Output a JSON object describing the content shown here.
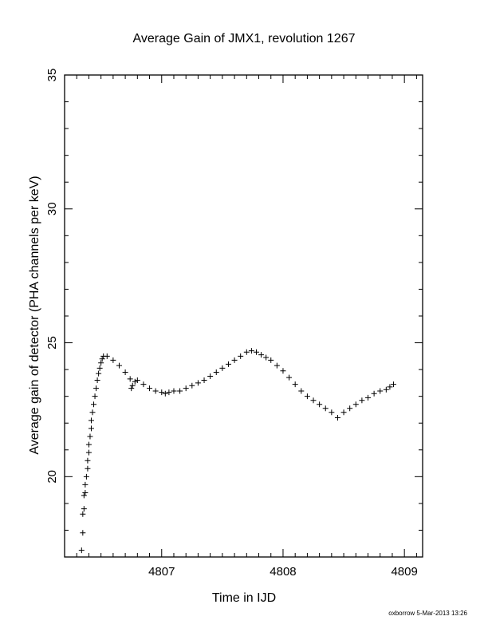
{
  "chart_data": {
    "type": "scatter",
    "title": "Average Gain of JMX1, revolution 1267",
    "xlabel": "Time in IJD",
    "ylabel": "Average gain of detector (PHA channels per keV)",
    "xlim": [
      4806.2,
      4809.15
    ],
    "ylim": [
      17.0,
      35.0
    ],
    "x_ticks": [
      4807,
      4808,
      4809
    ],
    "y_ticks": [
      20,
      25,
      30,
      35
    ],
    "grid": false,
    "marker": "+",
    "series": [
      {
        "values": [
          [
            4806.34,
            17.25
          ],
          [
            4806.35,
            17.9
          ],
          [
            4806.35,
            18.6
          ],
          [
            4806.36,
            18.8
          ],
          [
            4806.36,
            19.3
          ],
          [
            4806.37,
            19.4
          ],
          [
            4806.37,
            19.7
          ],
          [
            4806.38,
            20.0
          ],
          [
            4806.39,
            20.3
          ],
          [
            4806.39,
            20.6
          ],
          [
            4806.4,
            20.9
          ],
          [
            4806.4,
            21.2
          ],
          [
            4806.41,
            21.5
          ],
          [
            4806.42,
            21.8
          ],
          [
            4806.42,
            22.1
          ],
          [
            4806.43,
            22.4
          ],
          [
            4806.44,
            22.7
          ],
          [
            4806.45,
            23.0
          ],
          [
            4806.46,
            23.3
          ],
          [
            4806.47,
            23.6
          ],
          [
            4806.48,
            23.85
          ],
          [
            4806.49,
            24.05
          ],
          [
            4806.5,
            24.25
          ],
          [
            4806.51,
            24.4
          ],
          [
            4806.52,
            24.5
          ],
          [
            4806.55,
            24.5
          ],
          [
            4806.6,
            24.35
          ],
          [
            4806.65,
            24.15
          ],
          [
            4806.7,
            23.9
          ],
          [
            4806.74,
            23.65
          ],
          [
            4806.75,
            23.3
          ],
          [
            4806.76,
            23.4
          ],
          [
            4806.78,
            23.55
          ],
          [
            4806.8,
            23.6
          ],
          [
            4806.85,
            23.45
          ],
          [
            4806.9,
            23.3
          ],
          [
            4806.95,
            23.2
          ],
          [
            4807.0,
            23.15
          ],
          [
            4807.03,
            23.1
          ],
          [
            4807.06,
            23.15
          ],
          [
            4807.1,
            23.2
          ],
          [
            4807.15,
            23.2
          ],
          [
            4807.2,
            23.3
          ],
          [
            4807.25,
            23.4
          ],
          [
            4807.3,
            23.5
          ],
          [
            4807.35,
            23.6
          ],
          [
            4807.4,
            23.75
          ],
          [
            4807.45,
            23.9
          ],
          [
            4807.5,
            24.05
          ],
          [
            4807.55,
            24.2
          ],
          [
            4807.6,
            24.35
          ],
          [
            4807.65,
            24.5
          ],
          [
            4807.7,
            24.65
          ],
          [
            4807.74,
            24.7
          ],
          [
            4807.78,
            24.65
          ],
          [
            4807.82,
            24.55
          ],
          [
            4807.86,
            24.45
          ],
          [
            4807.9,
            24.35
          ],
          [
            4807.95,
            24.15
          ],
          [
            4808.0,
            23.95
          ],
          [
            4808.05,
            23.7
          ],
          [
            4808.1,
            23.45
          ],
          [
            4808.15,
            23.2
          ],
          [
            4808.2,
            23.0
          ],
          [
            4808.25,
            22.85
          ],
          [
            4808.3,
            22.7
          ],
          [
            4808.35,
            22.55
          ],
          [
            4808.4,
            22.4
          ],
          [
            4808.45,
            22.2
          ],
          [
            4808.5,
            22.4
          ],
          [
            4808.55,
            22.55
          ],
          [
            4808.6,
            22.7
          ],
          [
            4808.65,
            22.85
          ],
          [
            4808.7,
            22.95
          ],
          [
            4808.75,
            23.1
          ],
          [
            4808.8,
            23.2
          ],
          [
            4808.85,
            23.25
          ],
          [
            4808.88,
            23.35
          ],
          [
            4808.91,
            23.45
          ]
        ]
      }
    ]
  },
  "footer": {
    "credit": "oxborrow  5-Mar-2013 13:26"
  }
}
